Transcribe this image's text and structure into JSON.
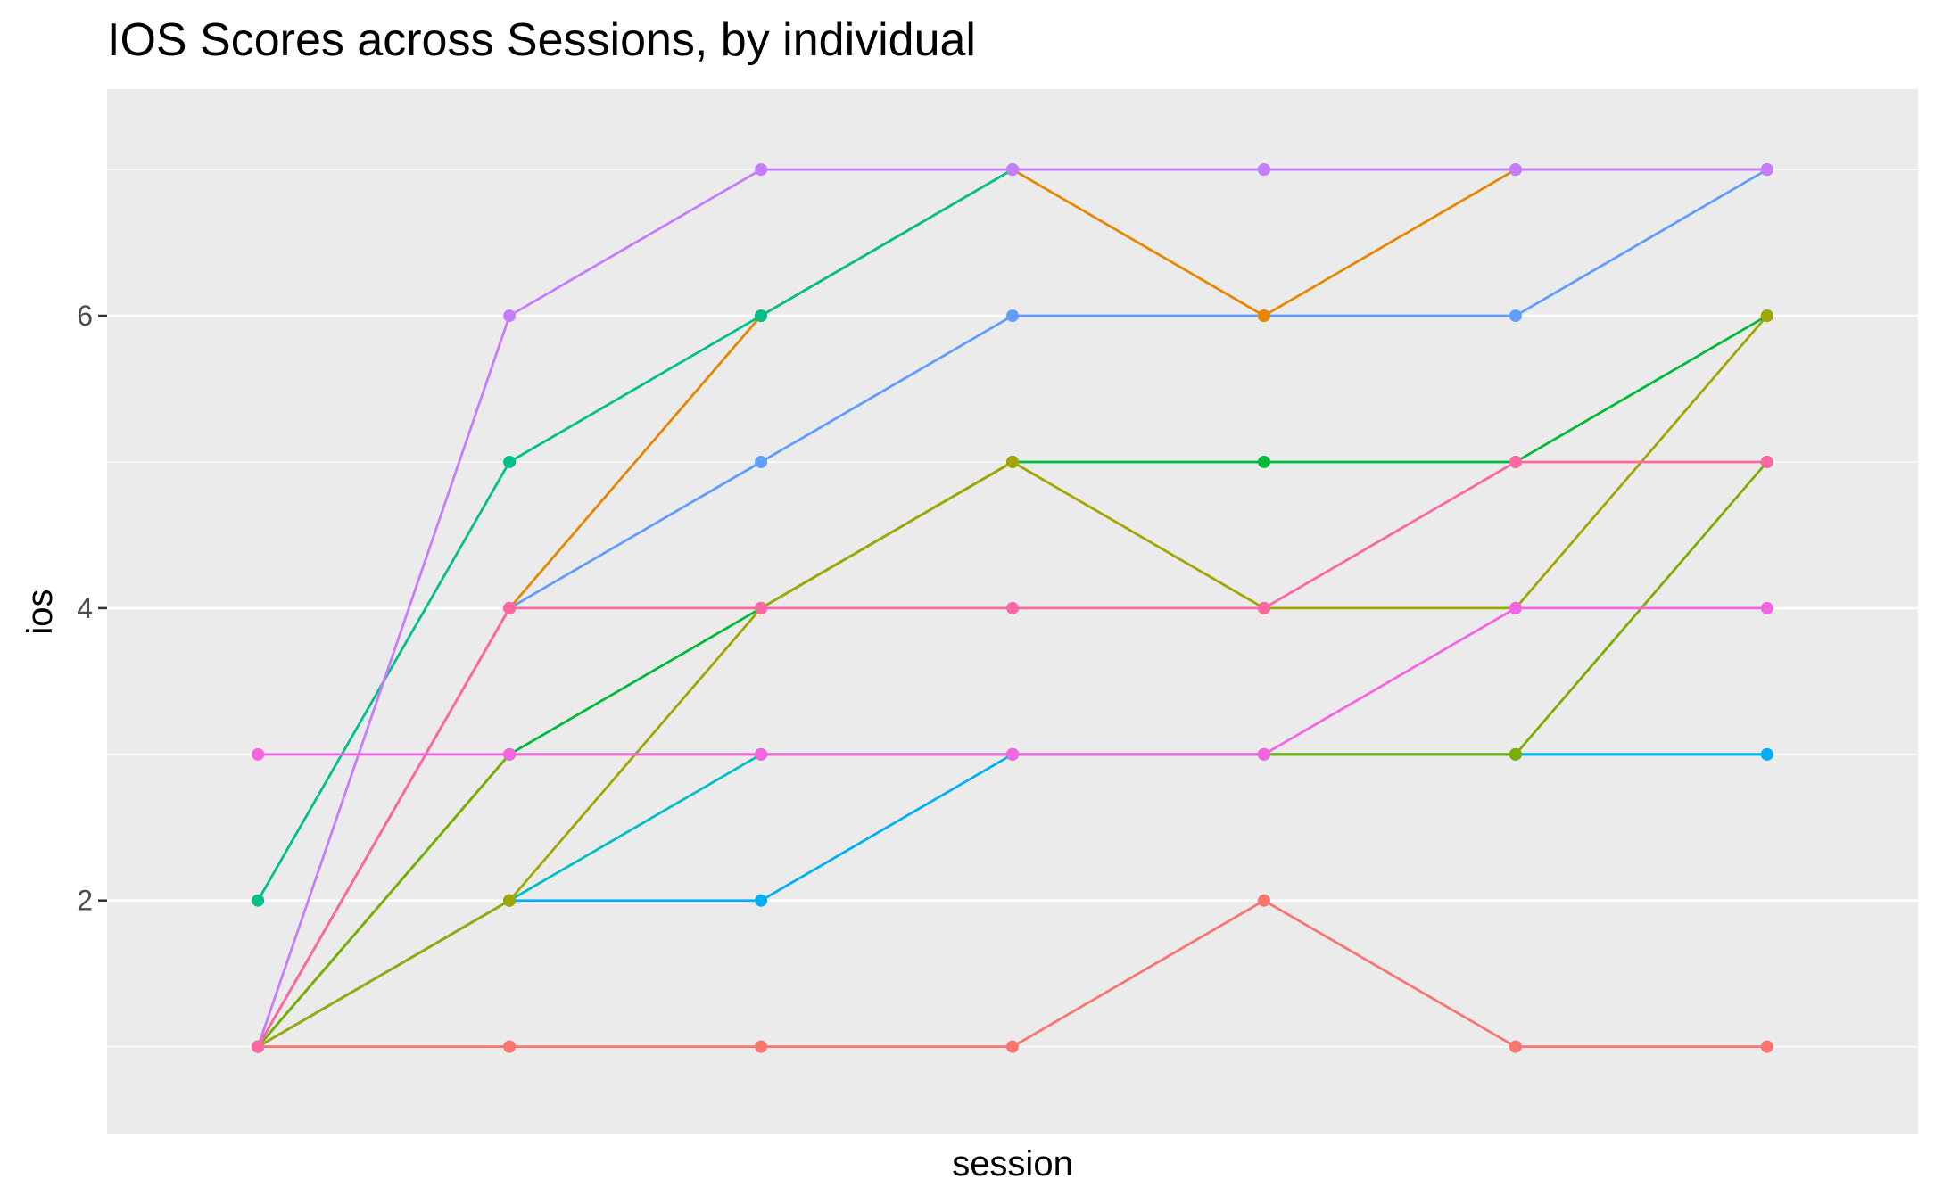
{
  "chart_data": {
    "type": "line",
    "title": "IOS Scores across Sessions, by individual",
    "xlabel": "session",
    "ylabel": "ios",
    "x": [
      1,
      2,
      3,
      4,
      5,
      6,
      7
    ],
    "x_tick_labels": [],
    "y_ticks": [
      2,
      4,
      6
    ],
    "ylim": [
      0.4,
      7.55
    ],
    "xlim": [
      0.4,
      7.6
    ],
    "grid": true,
    "legend": "none",
    "series": [
      {
        "color": "#F8766D",
        "values": [
          1,
          1,
          1,
          1,
          2,
          1,
          1
        ]
      },
      {
        "color": "#00BA38",
        "values": [
          1,
          3,
          4,
          5,
          5,
          5,
          6
        ]
      },
      {
        "color": "#00BFC4",
        "values": [
          1,
          2,
          3,
          3,
          3,
          3,
          3
        ]
      },
      {
        "color": "#00B0F6",
        "values": [
          1,
          2,
          2,
          3,
          3,
          3,
          3
        ]
      },
      {
        "color": "#619CFF",
        "values": [
          1,
          4,
          5,
          6,
          6,
          6,
          7
        ]
      },
      {
        "color": "#7CAE00",
        "values": [
          1,
          3,
          3,
          3,
          3,
          3,
          5
        ]
      },
      {
        "color": "#A3A500",
        "values": [
          1,
          2,
          4,
          5,
          4,
          4,
          6
        ]
      },
      {
        "color": "#E58700",
        "values": [
          1,
          4,
          6,
          7,
          6,
          7,
          7
        ]
      },
      {
        "color": "#00C08B",
        "values": [
          2,
          5,
          6,
          7,
          7,
          7,
          7
        ]
      },
      {
        "color": "#C77CFF",
        "values": [
          1,
          6,
          7,
          7,
          7,
          7,
          7
        ]
      },
      {
        "color": "#FF67A4",
        "values": [
          1,
          4,
          4,
          4,
          4,
          5,
          5
        ]
      },
      {
        "color": "#F564E3",
        "values": [
          3,
          3,
          3,
          3,
          3,
          4,
          4
        ]
      }
    ]
  }
}
